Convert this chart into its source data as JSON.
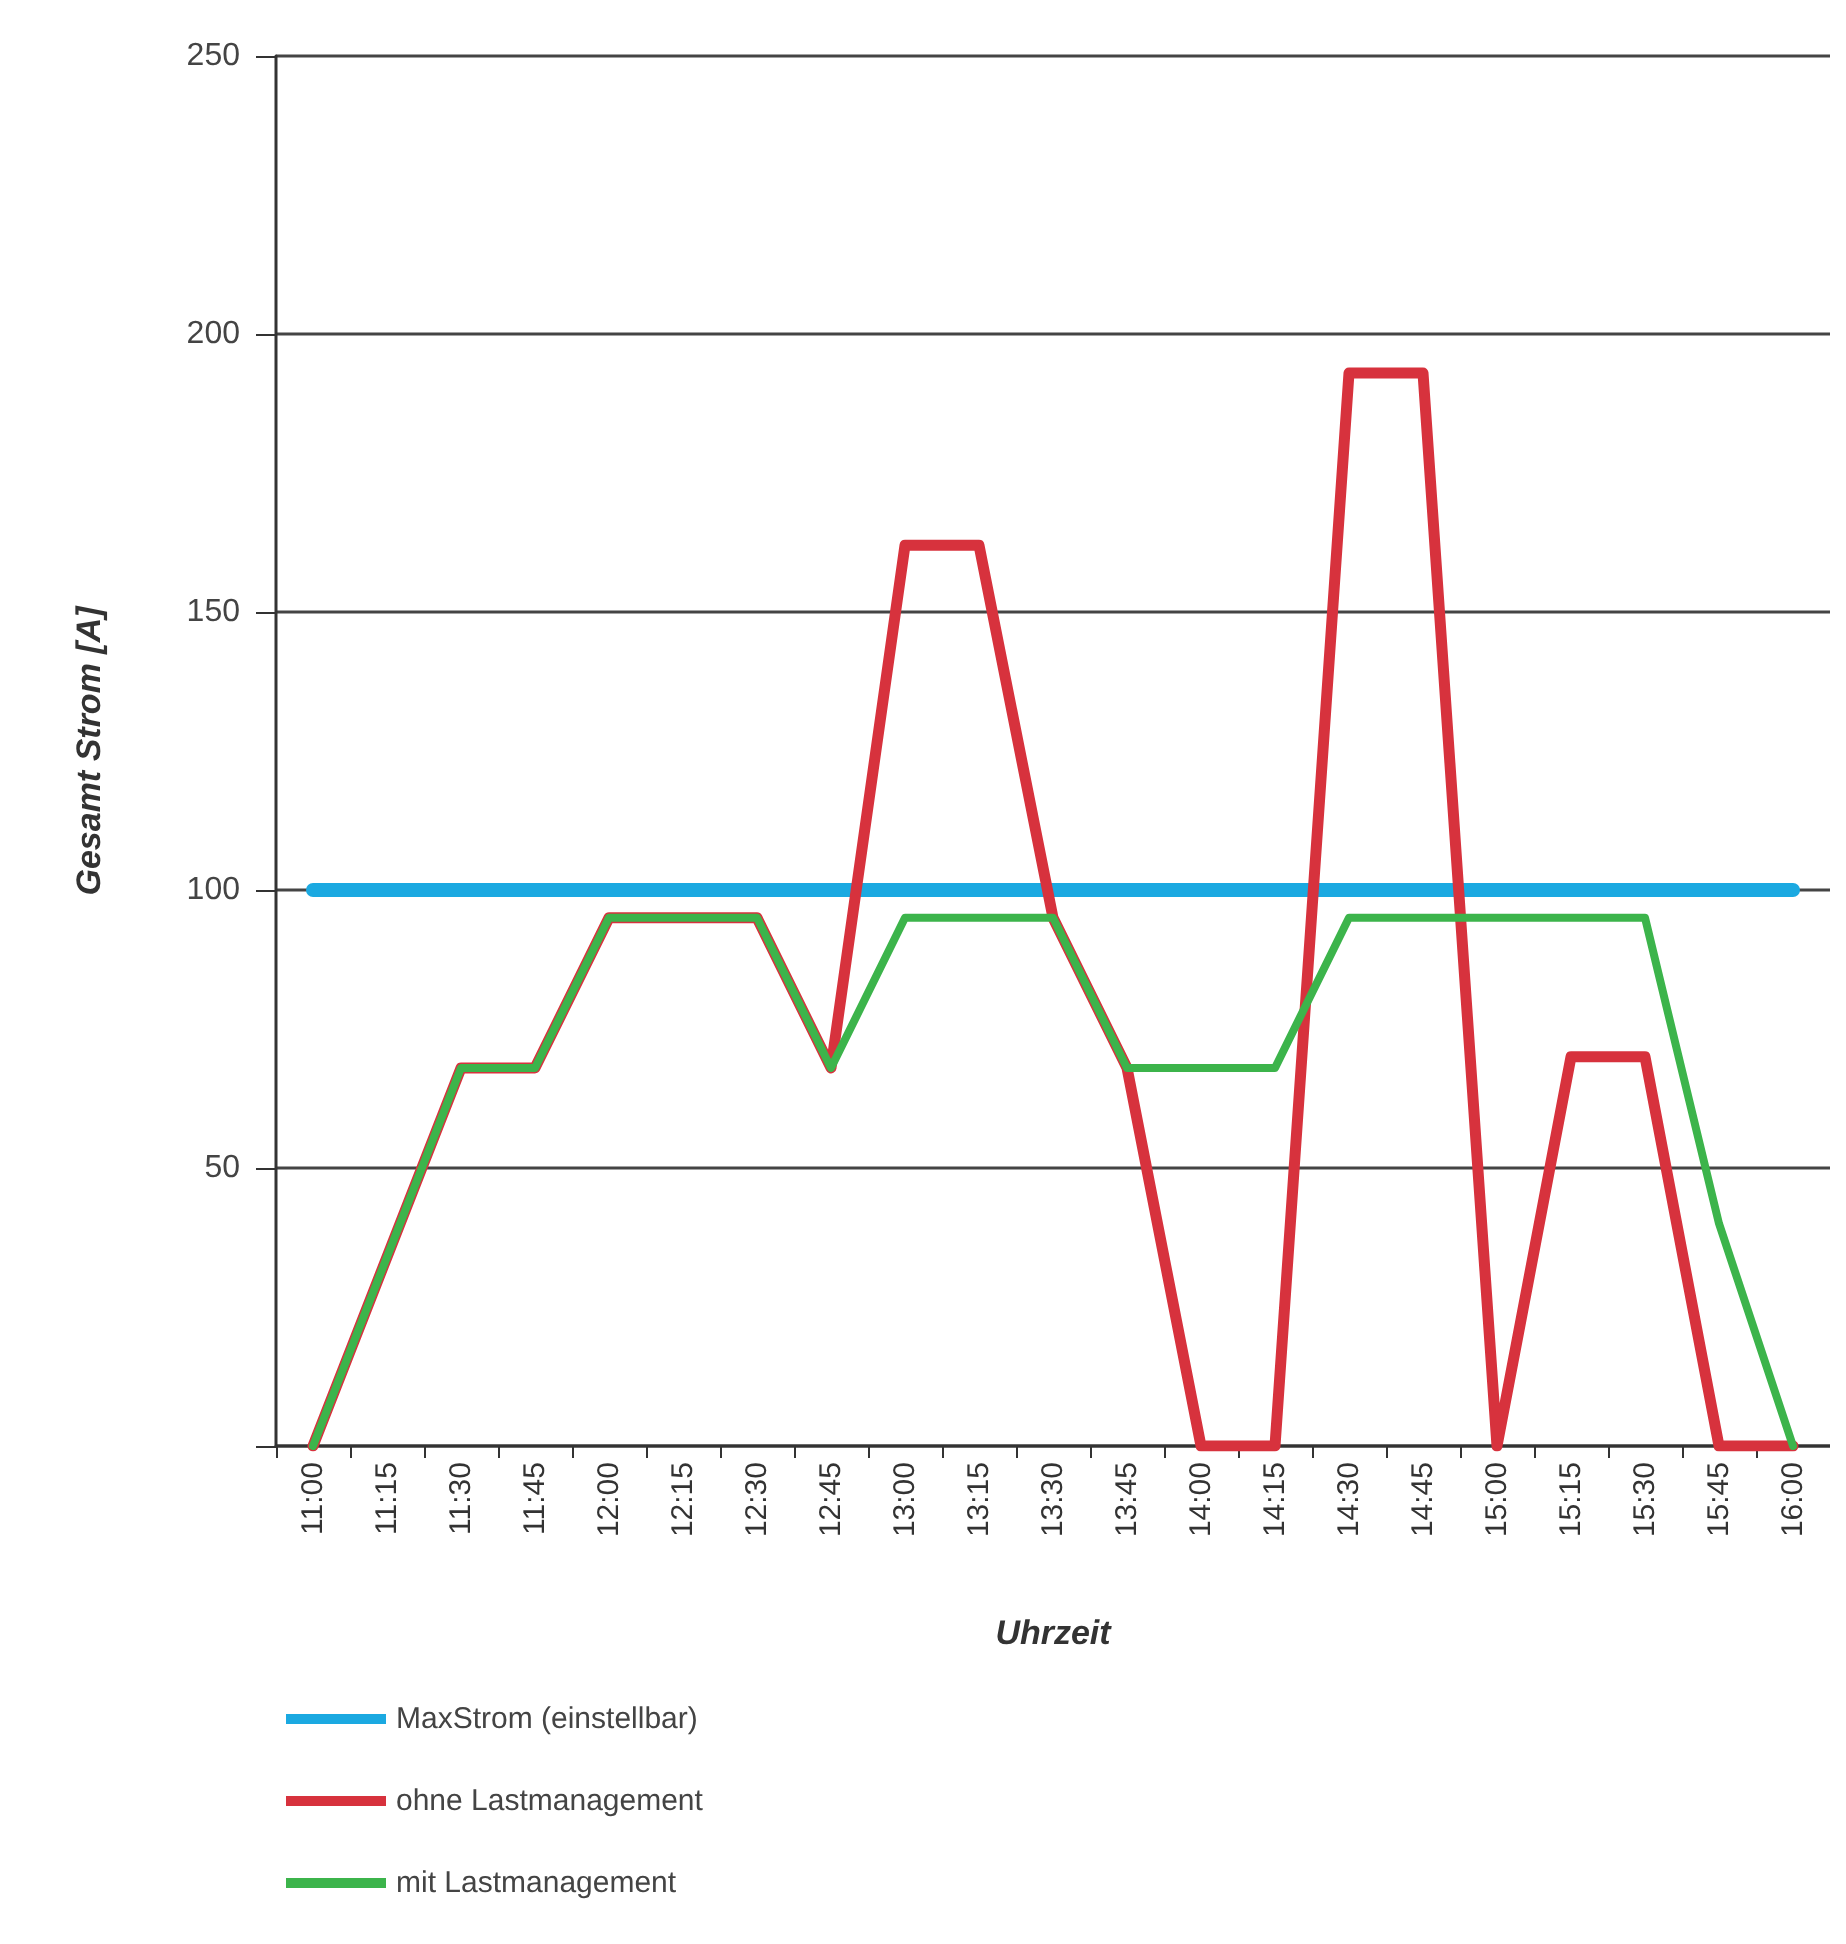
{
  "chart_data": {
    "type": "line",
    "xlabel": "Uhrzeit",
    "ylabel": "Gesamt Strom [A]",
    "categories": [
      "11:00",
      "11:15",
      "11:30",
      "11:45",
      "12:00",
      "12:15",
      "12:30",
      "12:45",
      "13:00",
      "13:15",
      "13:30",
      "13:45",
      "14:00",
      "14:15",
      "14:30",
      "14:45",
      "15:00",
      "15:15",
      "15:30",
      "15:45",
      "16:00"
    ],
    "series": [
      {
        "name": "MaxStrom (einstellbar)",
        "color": "#1ba9e1",
        "values": [
          100,
          100,
          100,
          100,
          100,
          100,
          100,
          100,
          100,
          100,
          100,
          100,
          100,
          100,
          100,
          100,
          100,
          100,
          100,
          100,
          100
        ]
      },
      {
        "name": "ohne Lastmanagement",
        "color": "#d7323d",
        "values": [
          0,
          34,
          68,
          68,
          95,
          95,
          95,
          68,
          162,
          162,
          95,
          68,
          0,
          0,
          193,
          193,
          0,
          70,
          70,
          0,
          0
        ]
      },
      {
        "name": "mit Lastmanagement",
        "color": "#3cb44b",
        "values": [
          0,
          34,
          68,
          68,
          95,
          95,
          95,
          68,
          95,
          95,
          95,
          68,
          68,
          68,
          95,
          95,
          95,
          95,
          95,
          40,
          0
        ]
      }
    ],
    "ylim": [
      0,
      250
    ],
    "yticks": [
      {
        "value": 0,
        "label": null
      },
      50,
      100,
      150,
      200,
      250
    ],
    "grid": "y",
    "legend": "bottom",
    "marker": "none",
    "line_style": "solid"
  }
}
